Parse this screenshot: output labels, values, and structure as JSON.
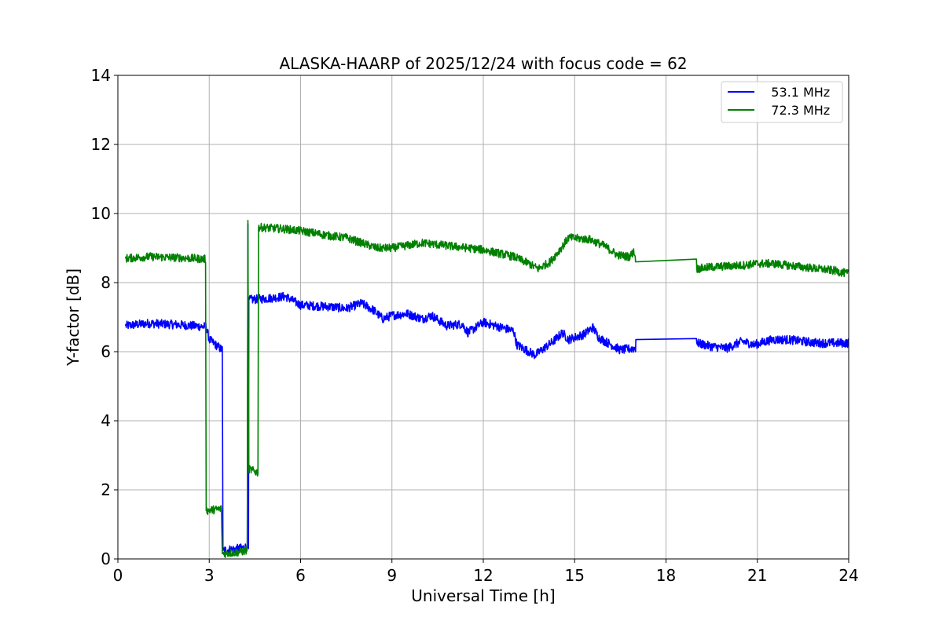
{
  "chart_data": {
    "type": "line",
    "title": "ALASKA-HAARP of 2025/12/24 with focus code = 62",
    "xlabel": "Universal Time [h]",
    "ylabel": "Y-factor [dB]",
    "xlim": [
      0,
      24
    ],
    "ylim": [
      0,
      14
    ],
    "xticks": [
      0,
      3,
      6,
      9,
      12,
      15,
      18,
      21,
      24
    ],
    "xtick_labels": [
      "0",
      "3",
      "6",
      "9",
      "12",
      "15",
      "18",
      "21",
      "24"
    ],
    "yticks": [
      0,
      2,
      4,
      6,
      8,
      10,
      12,
      14
    ],
    "ytick_labels": [
      "0",
      "2",
      "4",
      "6",
      "8",
      "10",
      "12",
      "14"
    ],
    "grid": true,
    "legend_position": "top-right",
    "series": [
      {
        "name": "   53.1 MHz",
        "color": "#0000ff",
        "noise": 0.13,
        "points": [
          [
            0.25,
            6.75
          ],
          [
            1.0,
            6.82
          ],
          [
            2.0,
            6.78
          ],
          [
            2.9,
            6.72
          ],
          [
            3.0,
            6.35
          ],
          [
            3.35,
            6.1
          ],
          [
            3.43,
            6.05
          ],
          [
            3.45,
            0.25
          ],
          [
            4.0,
            0.3
          ],
          [
            4.25,
            0.35
          ],
          [
            4.27,
            9.7
          ],
          [
            4.29,
            0.3
          ],
          [
            4.3,
            7.5
          ],
          [
            5.0,
            7.55
          ],
          [
            5.5,
            7.6
          ],
          [
            6.0,
            7.35
          ],
          [
            7.0,
            7.3
          ],
          [
            7.5,
            7.25
          ],
          [
            8.0,
            7.4
          ],
          [
            8.4,
            7.2
          ],
          [
            8.7,
            6.95
          ],
          [
            9.0,
            7.05
          ],
          [
            9.5,
            7.1
          ],
          [
            10.0,
            6.95
          ],
          [
            10.3,
            7.05
          ],
          [
            10.8,
            6.75
          ],
          [
            11.3,
            6.8
          ],
          [
            11.5,
            6.55
          ],
          [
            12.0,
            6.85
          ],
          [
            12.6,
            6.7
          ],
          [
            13.0,
            6.6
          ],
          [
            13.1,
            6.2
          ],
          [
            13.7,
            5.9
          ],
          [
            14.3,
            6.3
          ],
          [
            14.6,
            6.55
          ],
          [
            14.8,
            6.35
          ],
          [
            15.3,
            6.5
          ],
          [
            15.6,
            6.7
          ],
          [
            15.8,
            6.4
          ],
          [
            16.2,
            6.2
          ],
          [
            16.5,
            6.05
          ],
          [
            17.0,
            6.1
          ],
          [
            17.01,
            6.35
          ],
          [
            19.0,
            6.38
          ],
          [
            19.01,
            6.25
          ],
          [
            19.5,
            6.15
          ],
          [
            20.0,
            6.1
          ],
          [
            20.5,
            6.3
          ],
          [
            20.9,
            6.2
          ],
          [
            21.5,
            6.35
          ],
          [
            22.0,
            6.35
          ],
          [
            23.0,
            6.25
          ],
          [
            24.0,
            6.25
          ]
        ]
      },
      {
        "name": "   72.3 MHz",
        "color": "#008000",
        "noise": 0.12,
        "points": [
          [
            0.25,
            8.7
          ],
          [
            1.0,
            8.75
          ],
          [
            2.0,
            8.72
          ],
          [
            2.88,
            8.68
          ],
          [
            2.9,
            1.4
          ],
          [
            3.4,
            1.45
          ],
          [
            3.43,
            0.15
          ],
          [
            4.0,
            0.2
          ],
          [
            4.25,
            0.25
          ],
          [
            4.27,
            9.8
          ],
          [
            4.3,
            2.6
          ],
          [
            4.6,
            2.5
          ],
          [
            4.62,
            9.6
          ],
          [
            5.5,
            9.55
          ],
          [
            6.0,
            9.5
          ],
          [
            7.0,
            9.35
          ],
          [
            7.5,
            9.3
          ],
          [
            8.0,
            9.15
          ],
          [
            8.5,
            9.0
          ],
          [
            9.0,
            9.0
          ],
          [
            10.0,
            9.15
          ],
          [
            11.0,
            9.05
          ],
          [
            12.0,
            8.95
          ],
          [
            13.0,
            8.75
          ],
          [
            13.5,
            8.55
          ],
          [
            13.8,
            8.4
          ],
          [
            14.2,
            8.6
          ],
          [
            14.6,
            9.05
          ],
          [
            14.8,
            9.3
          ],
          [
            15.5,
            9.25
          ],
          [
            16.0,
            9.05
          ],
          [
            16.4,
            8.8
          ],
          [
            16.8,
            8.75
          ],
          [
            16.95,
            8.9
          ],
          [
            17.0,
            8.68
          ],
          [
            19.0,
            8.68
          ],
          [
            19.01,
            8.4
          ],
          [
            19.5,
            8.45
          ],
          [
            20.5,
            8.5
          ],
          [
            21.0,
            8.55
          ],
          [
            21.5,
            8.55
          ],
          [
            22.5,
            8.45
          ],
          [
            23.5,
            8.35
          ],
          [
            24.0,
            8.25
          ]
        ]
      }
    ]
  }
}
